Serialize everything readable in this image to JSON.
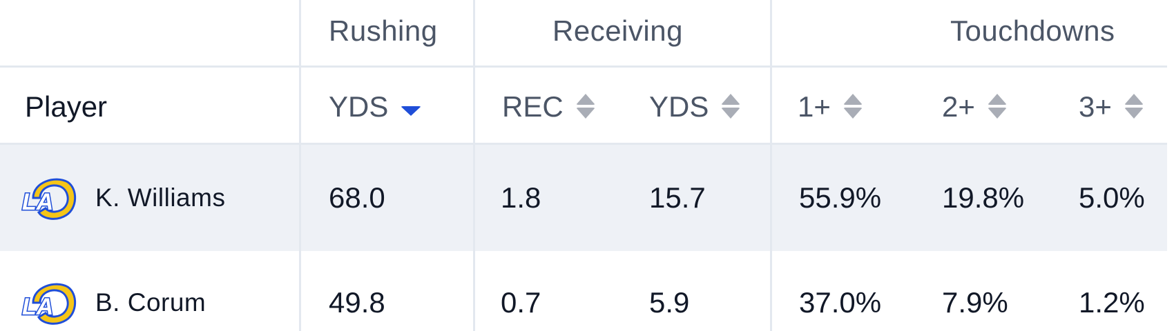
{
  "header": {
    "groups": {
      "rushing": "Rushing",
      "receiving": "Receiving",
      "touchdowns": "Touchdowns"
    },
    "columns": {
      "player": "Player",
      "rush_yds": "YDS",
      "rec": "REC",
      "rec_yds": "YDS",
      "td1": "1+",
      "td2": "2+",
      "td3": "3+"
    },
    "active_sort": "rush_yds",
    "sort_accent": "#1f4ed8"
  },
  "rows": [
    {
      "team_logo": "rams-logo",
      "player": "K. Williams",
      "rush_yds": "68.0",
      "rec": "1.8",
      "rec_yds": "15.7",
      "td1": "55.9%",
      "td2": "19.8%",
      "td3": "5.0%"
    },
    {
      "team_logo": "rams-logo",
      "player": "B. Corum",
      "rush_yds": "49.8",
      "rec": "0.7",
      "rec_yds": "5.9",
      "td1": "37.0%",
      "td2": "7.9%",
      "td3": "1.2%"
    }
  ],
  "colors": {
    "highlight_row": "#eef1f6",
    "grid": "#e3e8ef",
    "logo_blue": "#1f4ed8",
    "logo_gold": "#f5c518"
  }
}
